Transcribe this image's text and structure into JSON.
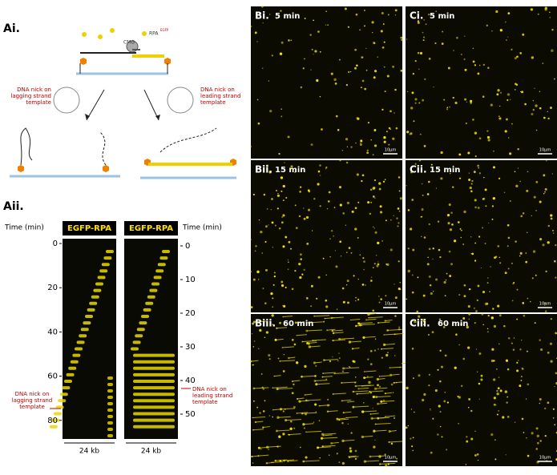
{
  "panel_a": {
    "part_i": {
      "label": "Ai.",
      "cmg": "CMG",
      "rpa": "RPA",
      "rpa_sup": "EGFP",
      "nick_lagging": [
        "DNA nick on",
        "lagging strand",
        "template"
      ],
      "nick_leading": [
        "DNA nick on",
        "leading strand",
        "template"
      ]
    },
    "part_ii": {
      "label": "Aii.",
      "left": {
        "axis_title": "Time (min)",
        "channel": "EGFP-RPA",
        "ticks": [
          0,
          20,
          40,
          60,
          80
        ],
        "annotation": [
          "DNA nick on",
          "lagging strand",
          "template"
        ],
        "width_label": "24 kb"
      },
      "right": {
        "axis_title": "Time (min)",
        "channel": "EGFP-RPA",
        "ticks": [
          0,
          10,
          20,
          30,
          40,
          50
        ],
        "annotation": [
          "DNA nick on",
          "leading strand",
          "template"
        ],
        "width_label": "24 kb"
      }
    }
  },
  "panels": [
    {
      "label": "Bi.",
      "time": "5 min",
      "scale": "10μm"
    },
    {
      "label": "Ci.",
      "time": "5 min",
      "scale": "10μm"
    },
    {
      "label": "Bii.",
      "time": "15 min",
      "scale": "10μm"
    },
    {
      "label": "Cii.",
      "time": "15 min",
      "scale": "10μm"
    },
    {
      "label": "Biii.",
      "time": "60 min",
      "scale": "10μm"
    },
    {
      "label": "Ciii.",
      "time": "60 min",
      "scale": "10μm"
    }
  ]
}
